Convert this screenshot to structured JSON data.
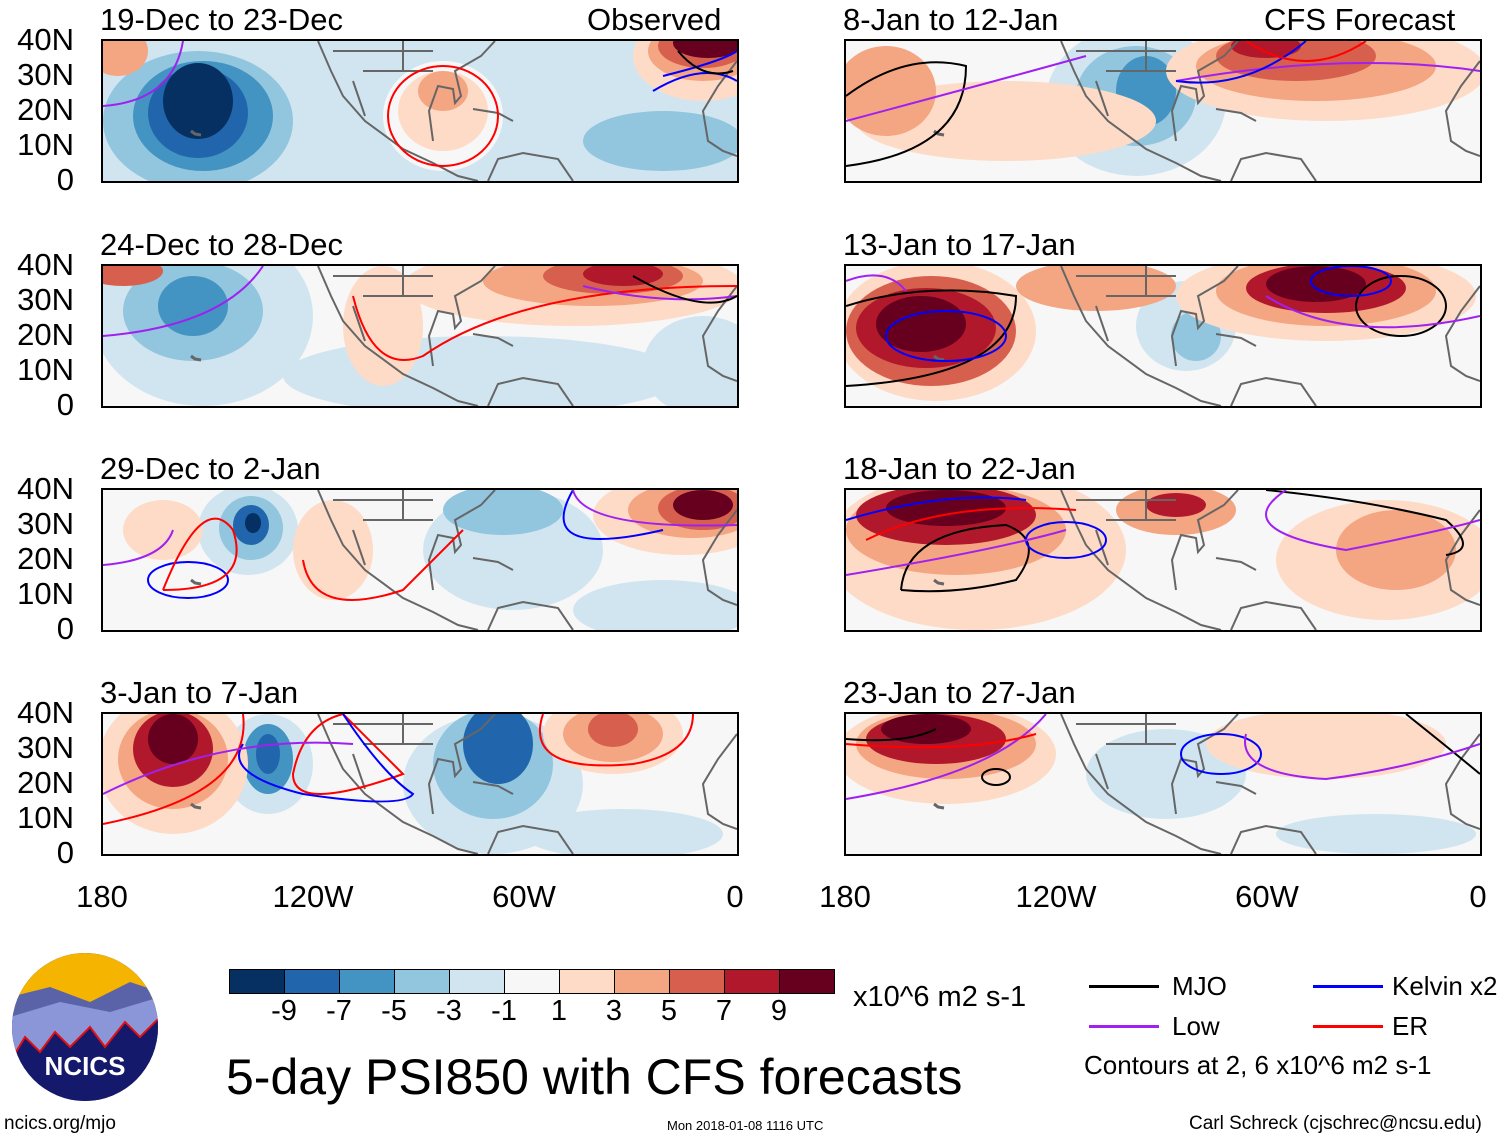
{
  "panels_left": [
    {
      "title": "19-Dec to 23-Dec",
      "tag": "Observed"
    },
    {
      "title": "24-Dec to 28-Dec"
    },
    {
      "title": "29-Dec to 2-Jan"
    },
    {
      "title": "3-Jan to 7-Jan"
    }
  ],
  "panels_right": [
    {
      "title": "8-Jan to 12-Jan",
      "tag": "CFS Forecast"
    },
    {
      "title": "13-Jan to 17-Jan"
    },
    {
      "title": "18-Jan to 22-Jan"
    },
    {
      "title": "23-Jan to 27-Jan"
    }
  ],
  "chart_data": {
    "type": "heatmap",
    "title": "5-day PSI850 with CFS forecasts",
    "y_ticks": [
      "40N",
      "30N",
      "20N",
      "10N",
      "0"
    ],
    "x_ticks": [
      "180",
      "120W",
      "60W",
      "0"
    ],
    "colorbar": {
      "labels": [
        "-9",
        "-7",
        "-5",
        "-3",
        "-1",
        "1",
        "3",
        "5",
        "7",
        "9"
      ],
      "colors": [
        "#053061",
        "#2166ac",
        "#4393c3",
        "#92c5de",
        "#d1e5f0",
        "#f7f7f7",
        "#fddbc7",
        "#f4a582",
        "#d6604d",
        "#b2182b",
        "#67001f"
      ],
      "units": "x10^6 m2 s-1"
    },
    "legend": [
      {
        "name": "MJO",
        "color": "#000000"
      },
      {
        "name": "Kelvin x2",
        "color": "#0000ff"
      },
      {
        "name": "Low",
        "color": "#a020f0"
      },
      {
        "name": "ER",
        "color": "#ff0000"
      }
    ],
    "contour_note": "Contours at 2, 6 x10^6 m2 s-1"
  },
  "footer": {
    "site": "ncics.org/mjo",
    "timestamp": "Mon 2018-01-08 1116 UTC",
    "credit": "Carl Schreck (cjschrec@ncsu.edu)",
    "logo": "NCICS"
  }
}
